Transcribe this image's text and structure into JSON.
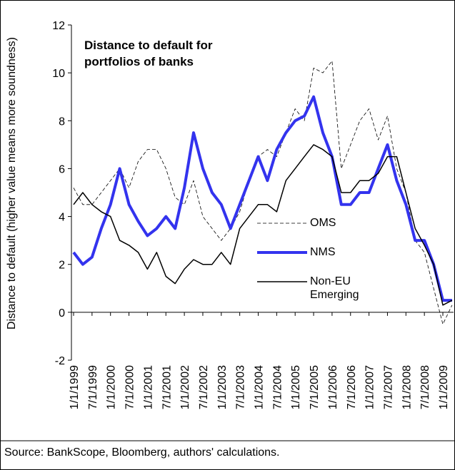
{
  "chart_data": {
    "type": "line",
    "title": "Distance to default for portfolios of banks",
    "y_label": "Distance to default (higher value means more soundness)",
    "source": "Source: BankScope, Bloomberg, authors' calculations.",
    "categories": [
      "1/1/1999",
      null,
      "7/1/1999",
      null,
      "1/1/2000",
      null,
      "7/1/2000",
      null,
      "1/1/2001",
      null,
      "7/1/2001",
      null,
      "1/1/2002",
      null,
      "7/1/2002",
      null,
      "1/1/2003",
      null,
      "7/1/2003",
      null,
      "1/1/2004",
      null,
      "7/1/2004",
      null,
      "1/1/2005",
      null,
      "7/1/2005",
      null,
      "1/1/2006",
      null,
      "7/1/2006",
      null,
      "1/1/2007",
      null,
      "7/1/2007",
      null,
      "1/1/2008",
      null,
      "7/1/2008",
      null,
      "1/1/2009",
      null
    ],
    "series": [
      {
        "name": "OMS",
        "color": "#000000",
        "style": "dashed",
        "width": 0.8,
        "values": [
          5.2,
          4.5,
          4.5,
          5.0,
          5.5,
          6.0,
          5.2,
          6.3,
          6.8,
          6.8,
          6.0,
          4.8,
          4.5,
          5.5,
          4.0,
          3.5,
          3.0,
          3.5,
          4.2,
          5.5,
          6.5,
          6.8,
          6.5,
          7.5,
          8.5,
          8.0,
          10.2,
          10.0,
          10.5,
          6.0,
          7.0,
          8.0,
          8.5,
          7.2,
          8.2,
          6.0,
          5.0,
          3.0,
          2.5,
          1.0,
          -0.5,
          0.3
        ]
      },
      {
        "name": "NMS",
        "color": "#3333ee",
        "style": "solid",
        "width": 4,
        "values": [
          2.5,
          2.0,
          2.3,
          3.5,
          4.5,
          6.0,
          4.5,
          3.8,
          3.2,
          3.5,
          4.0,
          3.5,
          5.2,
          7.5,
          6.0,
          5.0,
          4.5,
          3.5,
          4.5,
          5.5,
          6.5,
          5.5,
          6.8,
          7.5,
          8.0,
          8.2,
          9.0,
          7.5,
          6.5,
          4.5,
          4.5,
          5.0,
          5.0,
          6.0,
          7.0,
          5.5,
          4.5,
          3.0,
          3.0,
          2.0,
          0.5,
          0.5
        ]
      },
      {
        "name": "Non-EU Emerging",
        "color": "#000000",
        "style": "solid",
        "width": 1.5,
        "values": [
          4.5,
          5.0,
          4.5,
          4.2,
          4.0,
          3.0,
          2.8,
          2.5,
          1.8,
          2.5,
          1.5,
          1.2,
          1.8,
          2.2,
          2.0,
          2.0,
          2.5,
          2.0,
          3.5,
          4.0,
          4.5,
          4.5,
          4.2,
          5.5,
          6.0,
          6.5,
          7.0,
          6.8,
          6.5,
          5.0,
          5.0,
          5.5,
          5.5,
          5.8,
          6.5,
          6.5,
          5.0,
          3.5,
          2.8,
          2.0,
          0.3,
          0.5
        ]
      }
    ],
    "ylim": [
      -2,
      12
    ],
    "yticks": [
      -2,
      0,
      2,
      4,
      6,
      8,
      10,
      12
    ],
    "grid": false
  }
}
